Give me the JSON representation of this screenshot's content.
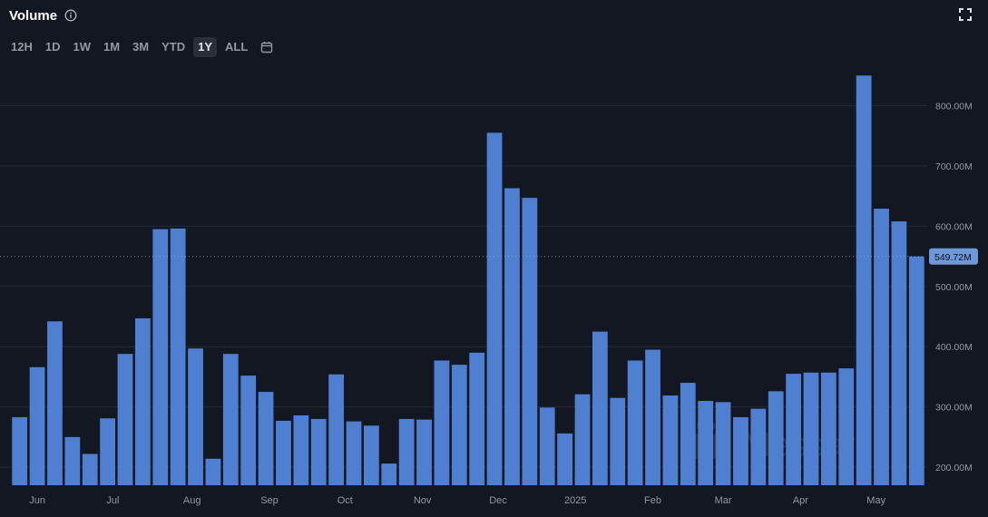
{
  "header": {
    "title": "Volume",
    "icons": {
      "info": "info-icon",
      "expand": "expand-icon",
      "calendar": "calendar-icon"
    }
  },
  "ranges": [
    {
      "label": "12H",
      "active": false
    },
    {
      "label": "1D",
      "active": false
    },
    {
      "label": "1W",
      "active": false
    },
    {
      "label": "1M",
      "active": false
    },
    {
      "label": "3M",
      "active": false
    },
    {
      "label": "YTD",
      "active": false
    },
    {
      "label": "1Y",
      "active": true
    },
    {
      "label": "ALL",
      "active": false
    }
  ],
  "watermark": "Messari",
  "colors": {
    "bar": "#4f7fd0",
    "background": "#131722",
    "grid": "#262a35",
    "last_label_bg": "#6f98d8"
  },
  "chart_data": {
    "type": "bar",
    "title": "Volume",
    "xlabel": "",
    "ylabel": "",
    "ylim": [
      170,
      870
    ],
    "y_ticks": [
      {
        "value": 200,
        "label": "200.00M"
      },
      {
        "value": 300,
        "label": "300.00M"
      },
      {
        "value": 400,
        "label": "400.00M"
      },
      {
        "value": 500,
        "label": "500.00M"
      },
      {
        "value": 600,
        "label": "600.00M"
      },
      {
        "value": 700,
        "label": "700.00M"
      },
      {
        "value": 800,
        "label": "800.00M"
      }
    ],
    "x_ticks": [
      {
        "label": "Jun",
        "bar_index": 1
      },
      {
        "label": "Jul",
        "bar_index": 5.3
      },
      {
        "label": "Aug",
        "bar_index": 9.8
      },
      {
        "label": "Sep",
        "bar_index": 14.2
      },
      {
        "label": "Oct",
        "bar_index": 18.5
      },
      {
        "label": "Nov",
        "bar_index": 22.9
      },
      {
        "label": "Dec",
        "bar_index": 27.2
      },
      {
        "label": "2025",
        "bar_index": 31.6
      },
      {
        "label": "Feb",
        "bar_index": 36
      },
      {
        "label": "Mar",
        "bar_index": 40
      },
      {
        "label": "Apr",
        "bar_index": 44.4
      },
      {
        "label": "May",
        "bar_index": 48.7
      }
    ],
    "values": [
      283,
      366,
      442,
      250,
      222,
      281,
      388,
      447,
      595,
      596,
      397,
      214,
      388,
      352,
      325,
      277,
      286,
      280,
      354,
      276,
      269,
      206,
      280,
      279,
      377,
      370,
      390,
      755,
      663,
      647,
      299,
      256,
      321,
      425,
      315,
      377,
      395,
      319,
      340,
      310,
      308,
      283,
      297,
      326,
      355,
      357,
      357,
      364,
      850,
      629,
      608,
      549.72
    ],
    "last_value_label": "549.72M",
    "grid": true,
    "legend": "none"
  }
}
